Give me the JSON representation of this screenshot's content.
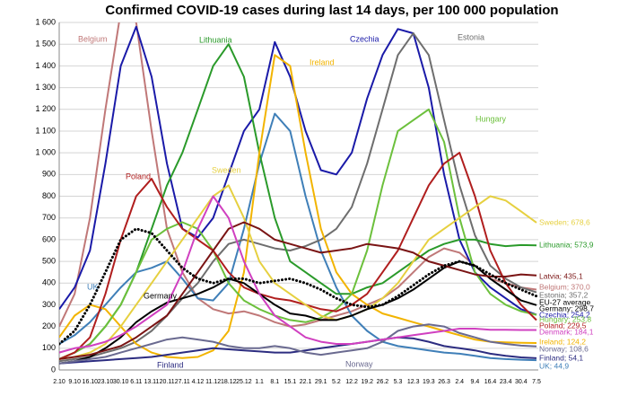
{
  "chart_data": {
    "type": "line",
    "title": "Confirmed COVID-19 cases during last 14 days, per 100 000 population",
    "categories": [
      "2.10",
      "9.10",
      "16.10",
      "23.10",
      "30.10",
      "6.11",
      "13.11",
      "20.11",
      "27.11",
      "4.12",
      "11.12",
      "18.12",
      "25.12",
      "1.1",
      "8.1",
      "15.1",
      "22.1",
      "29.1",
      "5.2",
      "12.2",
      "19.2",
      "26.2",
      "5.3",
      "12.3",
      "19.3",
      "26.3",
      "2.4",
      "9.4",
      "16.4",
      "23.4",
      "30.4",
      "7.5"
    ],
    "ylim": [
      0,
      1600
    ],
    "yticks": [
      0,
      100,
      200,
      300,
      400,
      500,
      600,
      700,
      800,
      900,
      {
        "value": 1000,
        "label": "1 000"
      },
      {
        "value": 1100,
        "label": "1 100"
      },
      {
        "value": 1200,
        "label": "1 200"
      },
      {
        "value": 1300,
        "label": "1 300"
      },
      {
        "value": 1400,
        "label": "1 400"
      },
      {
        "value": 1500,
        "label": "1 500"
      },
      {
        "value": 1600,
        "label": "1 600"
      }
    ],
    "grid": true,
    "series": [
      {
        "name": "Belgium",
        "end_label": "Belgium; 370,0",
        "color": "#c07878",
        "values": [
          200,
          350,
          700,
          1200,
          1650,
          1600,
          1100,
          650,
          450,
          330,
          280,
          260,
          270,
          250,
          220,
          200,
          210,
          230,
          250,
          270,
          300,
          330,
          380,
          450,
          520,
          560,
          540,
          480,
          420,
          400,
          380,
          370.0
        ]
      },
      {
        "name": "UK",
        "end_label": "UK; 44,9",
        "color": "#3f7fb8",
        "values": [
          120,
          160,
          220,
          300,
          380,
          450,
          470,
          500,
          420,
          330,
          320,
          400,
          650,
          950,
          1180,
          1100,
          800,
          550,
          380,
          250,
          180,
          130,
          110,
          100,
          90,
          80,
          75,
          65,
          55,
          50,
          47,
          44.9
        ]
      },
      {
        "name": "Czechia",
        "end_label": "Czechia; 254,2",
        "color": "#1a1aa8",
        "values": [
          280,
          380,
          550,
          950,
          1400,
          1580,
          1350,
          950,
          650,
          610,
          700,
          900,
          1100,
          1200,
          1510,
          1350,
          1100,
          920,
          900,
          1000,
          1250,
          1450,
          1570,
          1550,
          1300,
          900,
          600,
          450,
          380,
          330,
          280,
          254.2
        ]
      },
      {
        "name": "Estonia",
        "end_label": "Estonia; 357,2",
        "color": "#6e6e6e",
        "values": [
          40,
          50,
          60,
          80,
          100,
          130,
          180,
          250,
          330,
          400,
          500,
          580,
          600,
          580,
          560,
          550,
          570,
          600,
          650,
          750,
          950,
          1200,
          1450,
          1550,
          1450,
          1150,
          850,
          620,
          480,
          420,
          380,
          357.2
        ]
      },
      {
        "name": "Lithuania",
        "end_label": "Lithuania; 573,9",
        "color": "#2a9a2a",
        "values": [
          50,
          80,
          120,
          200,
          300,
          450,
          650,
          850,
          1000,
          1200,
          1400,
          1500,
          1350,
          1000,
          700,
          500,
          450,
          400,
          350,
          350,
          380,
          400,
          450,
          500,
          550,
          580,
          600,
          600,
          580,
          570,
          575,
          573.9
        ]
      },
      {
        "name": "Ireland",
        "end_label": "Ireland; 124,2",
        "color": "#f2b400",
        "values": [
          150,
          250,
          300,
          280,
          200,
          120,
          80,
          60,
          55,
          60,
          90,
          180,
          450,
          1000,
          1450,
          1400,
          1000,
          650,
          450,
          350,
          300,
          260,
          240,
          220,
          200,
          180,
          160,
          140,
          130,
          127,
          125,
          124.2
        ]
      },
      {
        "name": "Hungary",
        "end_label": "Hungary; 253,8",
        "color": "#6cc03c",
        "values": [
          50,
          80,
          120,
          200,
          300,
          450,
          600,
          650,
          680,
          650,
          550,
          400,
          320,
          280,
          250,
          230,
          220,
          240,
          280,
          350,
          550,
          850,
          1100,
          1150,
          1200,
          1050,
          700,
          450,
          350,
          300,
          270,
          253.8
        ]
      },
      {
        "name": "Poland",
        "end_label": "Poland; 229,5",
        "color": "#b01e1e",
        "values": [
          50,
          80,
          150,
          350,
          600,
          800,
          880,
          750,
          650,
          600,
          550,
          450,
          380,
          350,
          330,
          320,
          300,
          280,
          270,
          300,
          350,
          450,
          550,
          700,
          850,
          950,
          1000,
          800,
          550,
          400,
          300,
          229.5
        ]
      },
      {
        "name": "Sweden",
        "end_label": "Sweden; 678,6",
        "color": "#e6d040",
        "values": [
          50,
          60,
          80,
          120,
          200,
          300,
          400,
          500,
          600,
          700,
          800,
          850,
          700,
          500,
          400,
          350,
          300,
          250,
          230,
          250,
          280,
          330,
          400,
          500,
          600,
          650,
          700,
          750,
          800,
          780,
          730,
          678.6
        ]
      },
      {
        "name": "Germany",
        "end_label": "Germany; 298,7",
        "color": "#000000",
        "values": [
          30,
          40,
          60,
          100,
          150,
          220,
          270,
          310,
          330,
          350,
          380,
          420,
          400,
          350,
          300,
          260,
          250,
          230,
          230,
          250,
          280,
          300,
          330,
          370,
          420,
          470,
          500,
          480,
          420,
          370,
          320,
          298.7
        ]
      },
      {
        "name": "Finland",
        "end_label": "Finland; 54,1",
        "color": "#2c2c80",
        "values": [
          30,
          35,
          40,
          45,
          50,
          55,
          60,
          70,
          80,
          90,
          100,
          95,
          90,
          85,
          80,
          80,
          90,
          100,
          110,
          120,
          130,
          140,
          150,
          145,
          130,
          110,
          100,
          90,
          75,
          65,
          58,
          54.1
        ]
      },
      {
        "name": "Norway",
        "end_label": "Norway; 108,6",
        "color": "#6a6a90",
        "values": [
          30,
          40,
          50,
          60,
          80,
          100,
          120,
          140,
          150,
          140,
          130,
          110,
          100,
          100,
          110,
          100,
          80,
          70,
          80,
          90,
          100,
          130,
          180,
          200,
          210,
          200,
          170,
          150,
          130,
          120,
          112,
          108.6
        ]
      },
      {
        "name": "Latvia",
        "end_label": "Latvia; 435,1",
        "color": "#7a1414",
        "values": [
          50,
          60,
          70,
          90,
          110,
          150,
          200,
          250,
          350,
          450,
          550,
          650,
          680,
          650,
          600,
          580,
          560,
          540,
          550,
          560,
          580,
          570,
          560,
          540,
          500,
          480,
          460,
          440,
          430,
          430,
          440,
          435.1
        ]
      },
      {
        "name": "Denmark",
        "end_label": "Denmark; 184,1",
        "color": "#d040c0",
        "values": [
          80,
          100,
          110,
          130,
          160,
          200,
          250,
          300,
          450,
          650,
          800,
          700,
          500,
          350,
          250,
          200,
          150,
          130,
          120,
          120,
          130,
          140,
          150,
          160,
          170,
          180,
          190,
          190,
          185,
          185,
          184,
          184.1
        ]
      },
      {
        "name": "EU-27 average",
        "end_label": "EU-27 average",
        "color": "#000000",
        "line_style": "dotted",
        "values": [
          120,
          180,
          300,
          450,
          600,
          650,
          630,
          550,
          470,
          420,
          400,
          420,
          420,
          400,
          410,
          420,
          400,
          370,
          330,
          300,
          290,
          300,
          340,
          390,
          440,
          480,
          500,
          480,
          440,
          400,
          370,
          340
        ]
      }
    ]
  }
}
